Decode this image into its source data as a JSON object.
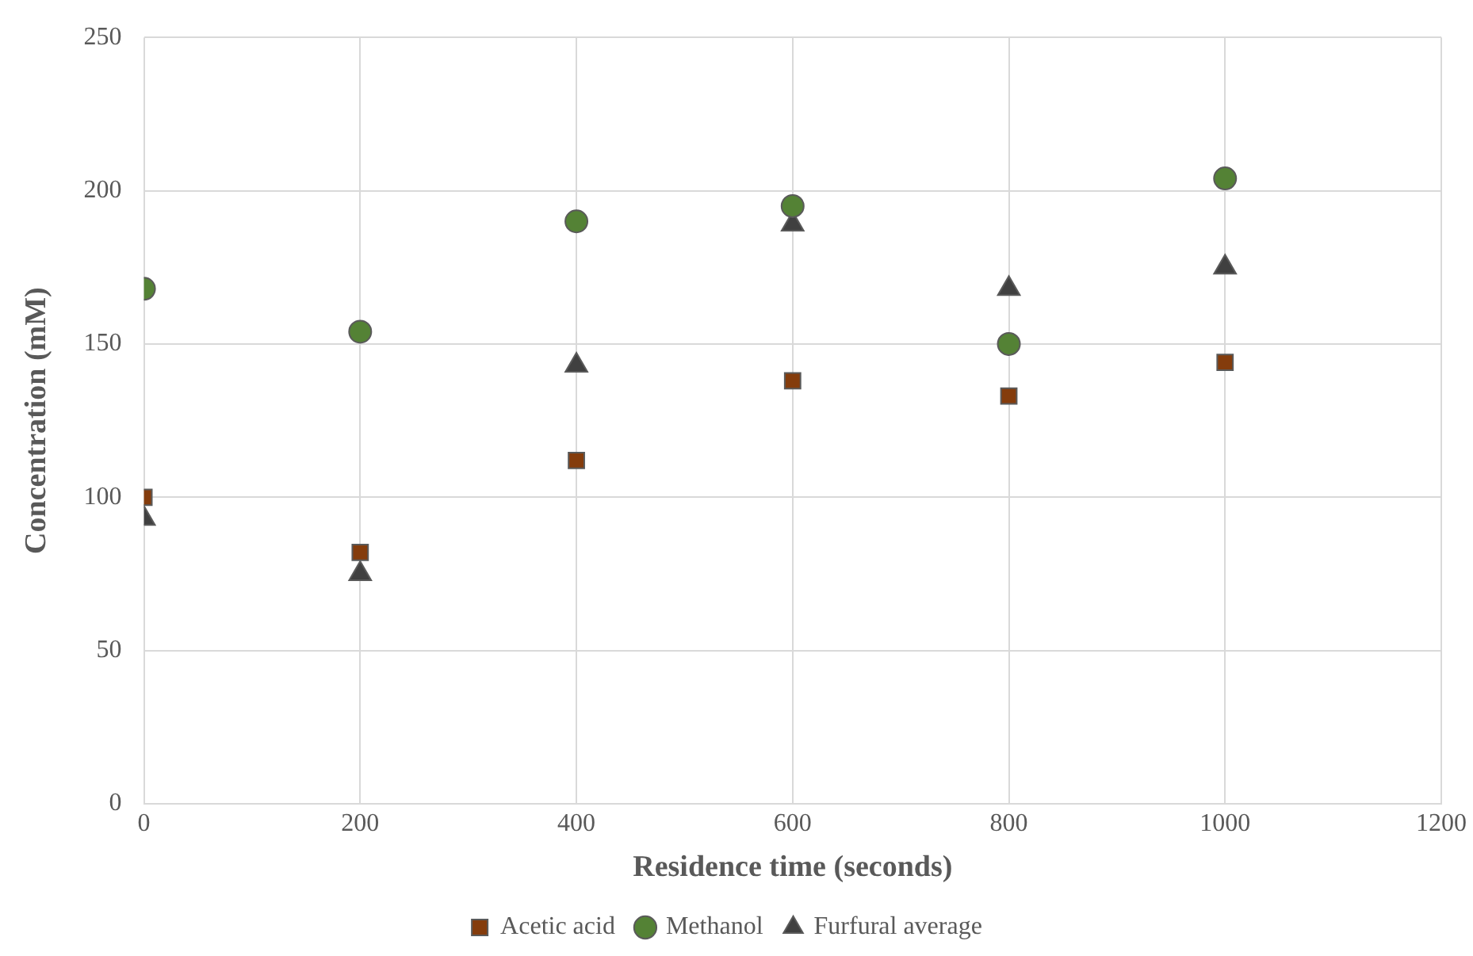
{
  "chart_data": {
    "type": "scatter",
    "xlabel": "Residence time (seconds)",
    "ylabel": "Concentration (mM)",
    "xlim": [
      0,
      1200
    ],
    "xticks": [
      0,
      200,
      400,
      600,
      800,
      1000,
      1200
    ],
    "ylim": [
      0,
      250
    ],
    "yticks": [
      0,
      50,
      100,
      150,
      200,
      250
    ],
    "grid": true,
    "legend": "bottom",
    "series": [
      {
        "name": "Acetic acid",
        "color": "#843c0c",
        "marker": "square",
        "x": [
          0,
          200,
          400,
          600,
          800,
          1000
        ],
        "values": [
          100,
          82,
          112,
          138,
          133,
          144
        ]
      },
      {
        "name": "Methanol",
        "color": "#548235",
        "marker": "circle",
        "x": [
          0,
          200,
          400,
          600,
          800,
          1000
        ],
        "values": [
          168,
          154,
          190,
          195,
          150,
          204
        ]
      },
      {
        "name": "Furfural average",
        "color": "#404040",
        "marker": "triangle",
        "x": [
          0,
          200,
          400,
          600,
          800,
          1000
        ],
        "values": [
          93,
          75,
          143,
          189,
          168,
          175
        ]
      }
    ]
  }
}
